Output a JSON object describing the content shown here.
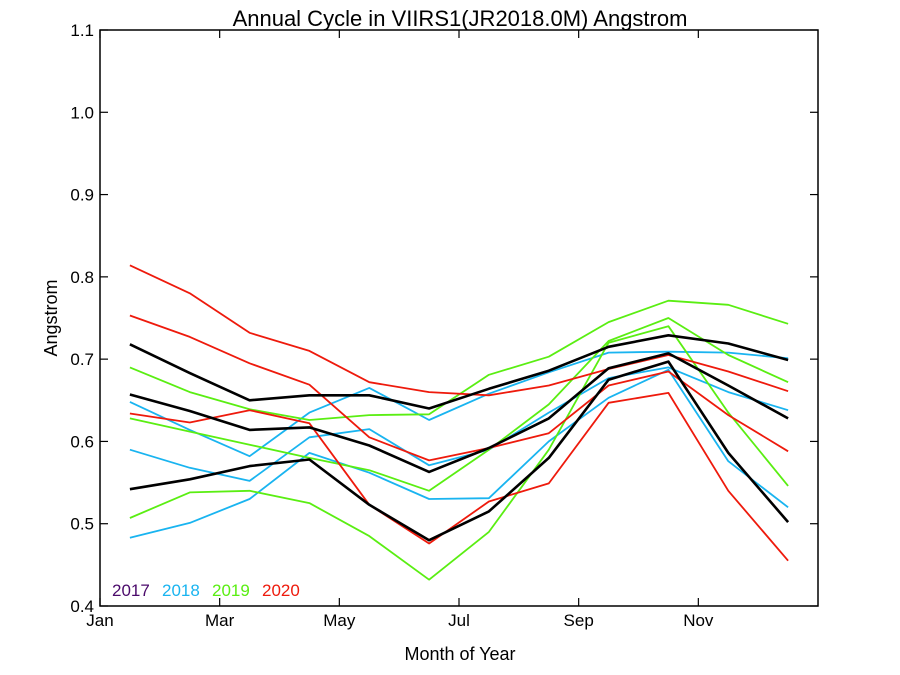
{
  "chart_data": {
    "type": "line",
    "title": "Annual Cycle in VIIRS1(JR2018.0M) Angstrom",
    "xlabel": "Month of Year",
    "ylabel": "Angstrom",
    "xlim": [
      1,
      13
    ],
    "ylim": [
      0.4,
      1.1
    ],
    "x_ticks": [
      {
        "value": 1,
        "label": "Jan"
      },
      {
        "value": 3,
        "label": "Mar"
      },
      {
        "value": 5,
        "label": "May"
      },
      {
        "value": 7,
        "label": "Jul"
      },
      {
        "value": 9,
        "label": "Sep"
      },
      {
        "value": 11,
        "label": "Nov"
      }
    ],
    "y_ticks": [
      "0.4",
      "0.5",
      "0.6",
      "0.7",
      "0.8",
      "0.9",
      "1.0",
      "1.1"
    ],
    "y_tick_values": [
      0.4,
      0.5,
      0.6,
      0.7,
      0.8,
      0.9,
      1.0,
      1.1
    ],
    "x": [
      1.5,
      2.5,
      3.5,
      4.5,
      5.5,
      6.5,
      7.5,
      8.5,
      9.5,
      10.5,
      11.5,
      12.5
    ],
    "legend": [
      {
        "label": "2017",
        "color": "#4b0a6b"
      },
      {
        "label": "2018",
        "color": "#19b4f0"
      },
      {
        "label": "2019",
        "color": "#5aee12"
      },
      {
        "label": "2020",
        "color": "#ee1a0c"
      }
    ],
    "legend_position": "bottom-left",
    "series": [
      {
        "color": "#19b4f0",
        "values": [
          0.648,
          0.614,
          0.582,
          0.635,
          0.665,
          0.626,
          0.658,
          0.684,
          0.708,
          0.709,
          0.708,
          0.701
        ]
      },
      {
        "color": "#19b4f0",
        "values": [
          0.59,
          0.568,
          0.552,
          0.605,
          0.615,
          0.571,
          0.59,
          0.635,
          0.677,
          0.69,
          0.66,
          0.638
        ]
      },
      {
        "color": "#19b4f0",
        "values": [
          0.483,
          0.501,
          0.53,
          0.586,
          0.562,
          0.53,
          0.531,
          0.6,
          0.653,
          0.687,
          0.576,
          0.52
        ]
      },
      {
        "color": "#5aee12",
        "values": [
          0.69,
          0.66,
          0.639,
          0.626,
          0.632,
          0.633,
          0.681,
          0.703,
          0.745,
          0.771,
          0.766,
          0.743
        ]
      },
      {
        "color": "#5aee12",
        "values": [
          0.628,
          0.612,
          0.596,
          0.58,
          0.565,
          0.54,
          0.59,
          0.645,
          0.722,
          0.75,
          0.705,
          0.672
        ]
      },
      {
        "color": "#5aee12",
        "values": [
          0.507,
          0.538,
          0.54,
          0.525,
          0.485,
          0.432,
          0.49,
          0.59,
          0.72,
          0.74,
          0.635,
          0.546
        ]
      },
      {
        "color": "#ee1a0c",
        "values": [
          0.814,
          0.78,
          0.732,
          0.71,
          0.672,
          0.66,
          0.656,
          0.668,
          0.688,
          0.705,
          0.685,
          0.661
        ]
      },
      {
        "color": "#ee1a0c",
        "values": [
          0.753,
          0.727,
          0.695,
          0.669,
          0.605,
          0.577,
          0.592,
          0.61,
          0.668,
          0.685,
          0.632,
          0.588
        ]
      },
      {
        "color": "#ee1a0c",
        "values": [
          0.634,
          0.623,
          0.638,
          0.622,
          0.523,
          0.476,
          0.527,
          0.549,
          0.647,
          0.659,
          0.54,
          0.455
        ]
      },
      {
        "color": "#000000",
        "values": [
          0.718,
          0.683,
          0.65,
          0.656,
          0.656,
          0.64,
          0.664,
          0.686,
          0.715,
          0.729,
          0.719,
          0.699
        ]
      },
      {
        "color": "#000000",
        "values": [
          0.657,
          0.637,
          0.614,
          0.617,
          0.595,
          0.563,
          0.592,
          0.628,
          0.689,
          0.707,
          0.668,
          0.628
        ]
      },
      {
        "color": "#000000",
        "values": [
          0.542,
          0.554,
          0.57,
          0.578,
          0.523,
          0.48,
          0.515,
          0.58,
          0.675,
          0.697,
          0.586,
          0.502
        ]
      }
    ]
  }
}
